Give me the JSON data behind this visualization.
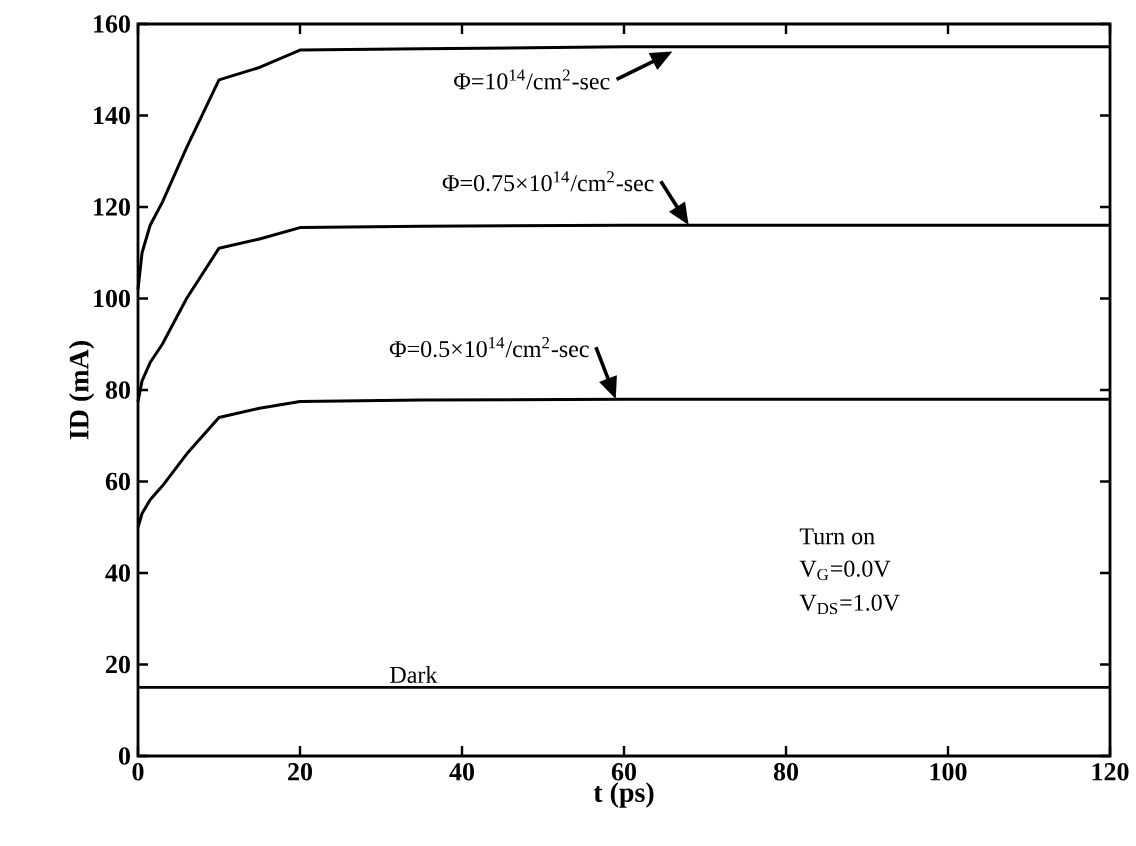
{
  "chart_data": {
    "type": "line",
    "xlabel": "t (ps)",
    "ylabel": "ID (mA)",
    "xlim": [
      0,
      120
    ],
    "ylim": [
      0,
      160
    ],
    "xticks": [
      0,
      20,
      40,
      60,
      80,
      100,
      120
    ],
    "yticks": [
      0,
      20,
      40,
      60,
      80,
      100,
      120,
      140,
      160
    ],
    "marker": "none",
    "line_style": "solid",
    "series": [
      {
        "color": "#000000",
        "x": [
          0,
          0.5,
          1.5,
          3,
          6,
          10,
          15,
          20,
          35,
          60,
          120
        ],
        "values": [
          102,
          110,
          116,
          121,
          133,
          147.8,
          150.5,
          154.3,
          154.6,
          155,
          155
        ]
      },
      {
        "color": "#000000",
        "x": [
          0,
          0.5,
          1.5,
          3,
          6,
          10,
          15,
          20,
          35,
          60,
          120
        ],
        "values": [
          77.5,
          82,
          86,
          90,
          100,
          111,
          113,
          115.5,
          115.8,
          116,
          116
        ]
      },
      {
        "color": "#000000",
        "x": [
          0,
          0.5,
          1.5,
          3,
          6,
          10,
          15,
          20,
          35,
          60,
          120
        ],
        "values": [
          50,
          53,
          56,
          59,
          66,
          74,
          76,
          77.5,
          77.8,
          78,
          78
        ]
      },
      {
        "color": "#000000",
        "x": [
          0,
          120
        ],
        "values": [
          15,
          15
        ]
      }
    ],
    "annotations": [
      {
        "text": "Φ=10$^{14}$/cm$^{2}$-sec",
        "x": 66,
        "y": 154
      },
      {
        "text": "Φ=0.75×10$^{14}$/cm$^{2}$-sec",
        "x": 68,
        "y": 116
      },
      {
        "text": "Φ=0.5×10$^{14}$/cm$^{2}$-sec",
        "x": 59,
        "y": 78
      },
      {
        "text": "Dark",
        "x": 34,
        "y": 15
      },
      "Turn on",
      "V$_{G}$=0.0V",
      "V$_{DS}$=1.0V"
    ]
  }
}
